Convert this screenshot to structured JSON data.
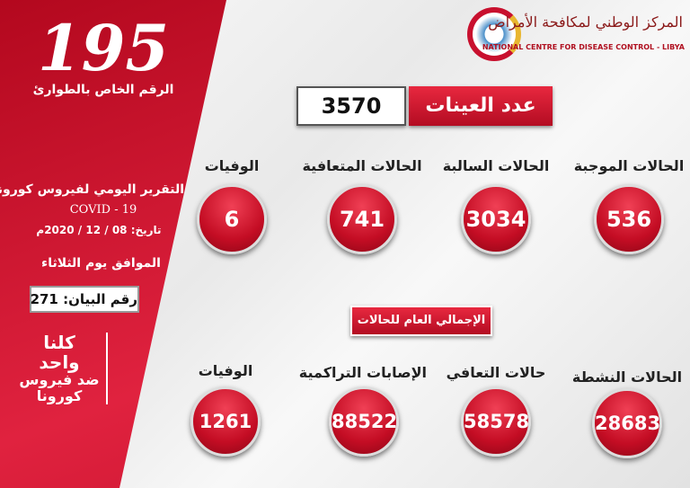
{
  "hotline": {
    "number": "195",
    "label": "الرقم الخاص بالطوارئ"
  },
  "report": {
    "title": "التقرير اليومي لفيروس كورونا",
    "covid": "COVID - 19",
    "date": "تاريخ: 08 / 12 / 2020م",
    "day": "الموافق يوم الثلاثاء",
    "statement": "رقم البيان: 271"
  },
  "slogan": [
    "كلنا",
    "واحد",
    "ضد فيروس",
    "كورونا"
  ],
  "logo": {
    "arabic": "المركز الوطني لمكافحة الأمراض",
    "english": "NATIONAL CENTRE FOR DISEASE CONTROL - LIBYA"
  },
  "samples": {
    "label": "عدد العينات",
    "value": "3570"
  },
  "daily": [
    {
      "label": "الحالات الموجبة",
      "value": "536"
    },
    {
      "label": "الحالات السالبة",
      "value": "3034"
    },
    {
      "label": "الحالات المتعافية",
      "value": "741"
    },
    {
      "label": "الوفيات",
      "value": "6"
    }
  ],
  "totals_header": "الإجمالي العام للحالات",
  "totals": [
    {
      "label": "الحالات النشطة",
      "value": "28683"
    },
    {
      "label": "حالات التعافي",
      "value": "58578"
    },
    {
      "label": "الإصابات التراكمية",
      "value": "88522"
    },
    {
      "label": "الوفيات",
      "value": "1261"
    }
  ],
  "colors": {
    "red": "#c8102e",
    "white": "#ffffff"
  }
}
